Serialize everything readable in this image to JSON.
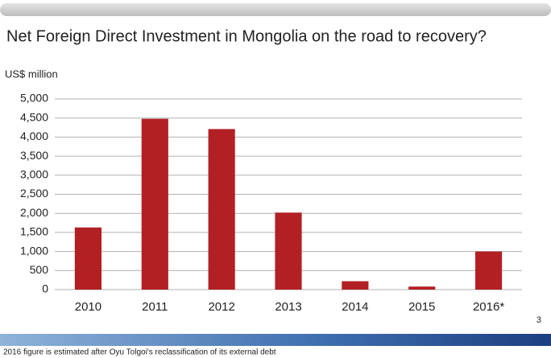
{
  "chart_data": {
    "type": "bar",
    "title": "Net Foreign Direct Investment in Mongolia on the road to recovery?",
    "y_axis_label": "US$ million",
    "categories": [
      "2010",
      "2011",
      "2012",
      "2013",
      "2014",
      "2015",
      "2016*"
    ],
    "values": [
      1630,
      4480,
      4210,
      2020,
      220,
      80,
      1000
    ],
    "color": "#b22024",
    "ylim": [
      0,
      5000
    ],
    "yticks": [
      0,
      500,
      {
        "value": 1000,
        "label": "1,000"
      },
      {
        "value": 1500,
        "label": "1,500"
      },
      {
        "value": 2000,
        "label": "2,000"
      },
      {
        "value": 2500,
        "label": "2,500"
      },
      {
        "value": 3000,
        "label": "3,000"
      },
      {
        "value": 3500,
        "label": "3,500"
      },
      {
        "value": 4000,
        "label": "4,000"
      },
      {
        "value": 4500,
        "label": "4,500"
      },
      {
        "value": 5000,
        "label": "5,000"
      }
    ],
    "grid": true
  },
  "page_number": "3",
  "footnote": "2016 figure is estimated after Oyu Tolgoi's reclassification of its external debt"
}
